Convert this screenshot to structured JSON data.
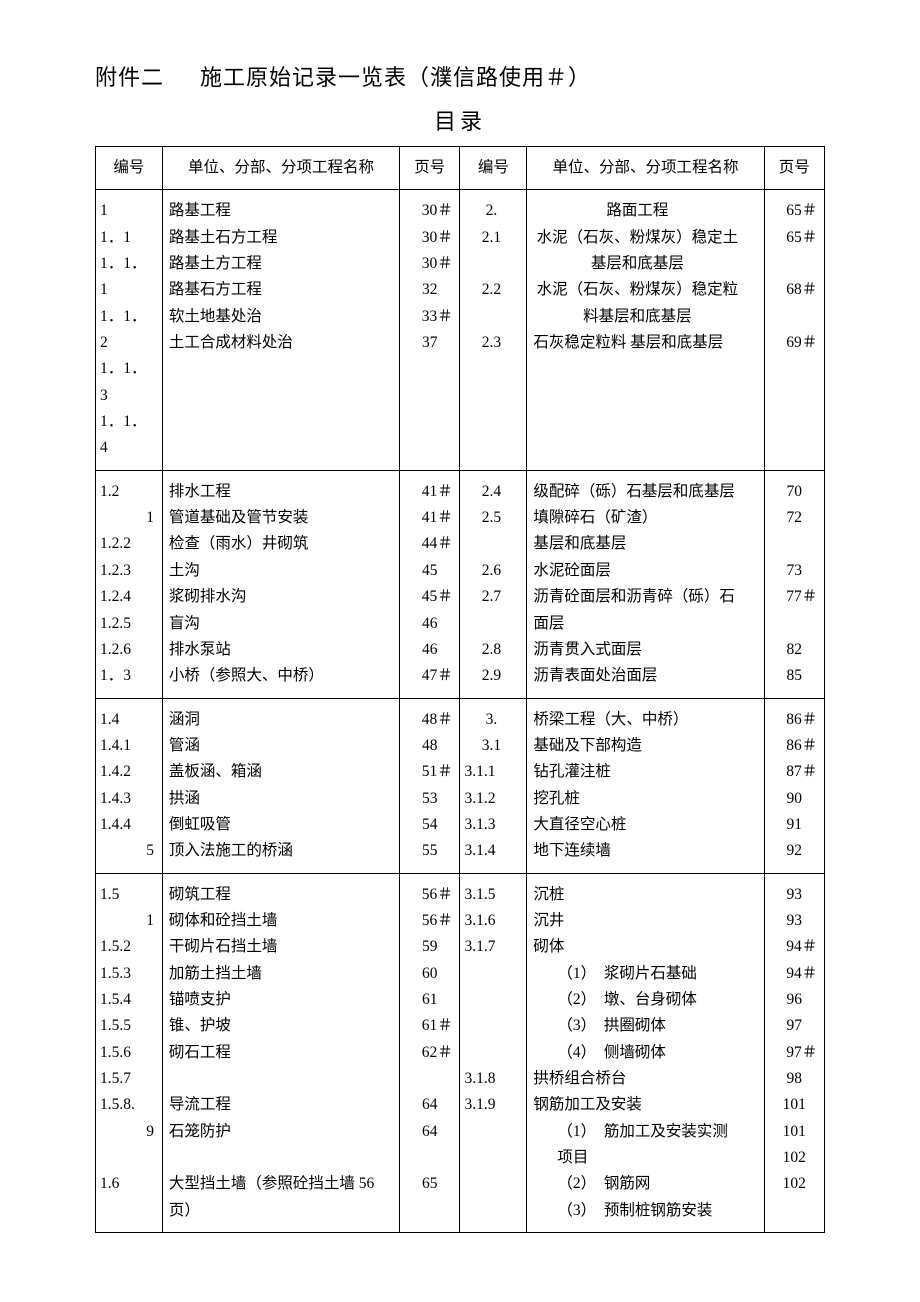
{
  "header": {
    "prefix": "附件二",
    "title": "施工原始记录一览表（濮信路使用＃）",
    "subtitle": "目录"
  },
  "columns": {
    "id": "编号",
    "name": "单位、分部、分项工程名称",
    "page": "页号"
  },
  "left": {
    "g1": {
      "r1": {
        "id": "1",
        "name": "路基工程",
        "page": "30＃"
      },
      "r2": {
        "id": "1．1",
        "name": "路基土石方工程",
        "page": "30＃"
      },
      "r3": {
        "id": "1．1．1",
        "name": "路基土方工程",
        "page": "30＃"
      },
      "r4": {
        "id": "1．1．2",
        "name": "路基石方工程",
        "page": "32"
      },
      "r5": {
        "id": "1．1．3",
        "name": "软土地基处治",
        "page": "33＃"
      },
      "r6": {
        "id": "1．1．4",
        "name": "土工合成材料处治",
        "page": "37"
      }
    },
    "g2": {
      "r1": {
        "id": "1.2",
        "name": "排水工程",
        "page": "41＃"
      },
      "r2": {
        "id": "1",
        "name": "管道基础及管节安装",
        "page": "41＃"
      },
      "r3": {
        "id": "1.2.2",
        "name": "检查（雨水）井砌筑",
        "page": "44＃"
      },
      "r4": {
        "id": "1.2.3",
        "name": "土沟",
        "page": "45"
      },
      "r5": {
        "id": "1.2.4",
        "name": "浆砌排水沟",
        "page": "45＃"
      },
      "r6": {
        "id": "1.2.5",
        "name": "盲沟",
        "page": "46"
      },
      "r7": {
        "id": "1.2.6",
        "name": "排水泵站",
        "page": "46"
      },
      "r8": {
        "id": "1．3",
        "name": "小桥（参照大、中桥）",
        "page": "47＃"
      }
    },
    "g3": {
      "r1": {
        "id": "1.4",
        "name": "涵洞",
        "page": "48＃"
      },
      "r2": {
        "id": "1.4.1",
        "name": "管涵",
        "page": "48"
      },
      "r3": {
        "id": "1.4.2",
        "name": "盖板涵、箱涵",
        "page": "51＃"
      },
      "r4": {
        "id": "1.4.3",
        "name": "拱涵",
        "page": "53"
      },
      "r5": {
        "id": "1.4.4",
        "name": "倒虹吸管",
        "page": "54"
      },
      "r6": {
        "id": "5",
        "name": "顶入法施工的桥涵",
        "page": "55"
      }
    },
    "g4": {
      "r1": {
        "id": "1.5",
        "name": "砌筑工程",
        "page": "56＃"
      },
      "r2": {
        "id": "1",
        "name": "砌体和砼挡土墙",
        "page": "56＃"
      },
      "r3": {
        "id": "1.5.2",
        "name": "干砌片石挡土墙",
        "page": "59"
      },
      "r4": {
        "id": "1.5.3",
        "name": "加筋土挡土墙",
        "page": "60"
      },
      "r5": {
        "id": "1.5.4",
        "name": "锚喷支护",
        "page": "61"
      },
      "r6": {
        "id": "1.5.5",
        "name": "锥、护坡",
        "page": "61＃"
      },
      "r7": {
        "id": "1.5.6",
        "name": "砌石工程",
        "page": "62＃"
      },
      "r8": {
        "id": "1.5.7",
        "name": "",
        "page": ""
      },
      "r9": {
        "id": "1.5.8.",
        "name": "导流工程",
        "page": "64"
      },
      "r10": {
        "id": "9",
        "name": "石笼防护",
        "page": "64"
      },
      "r11": {
        "id": "",
        "name": "",
        "page": ""
      },
      "r12": {
        "id": "1.6",
        "name": "大型挡土墙（参照砼挡土墙 56页）",
        "page": "65"
      }
    }
  },
  "right": {
    "g1": {
      "r1": {
        "id": "2.",
        "name": "路面工程",
        "page": "65＃"
      },
      "r2": {
        "id": "2.1",
        "name": "水泥（石灰、粉煤灰）稳定土",
        "page": "65＃"
      },
      "r3": {
        "id": "",
        "name": "基层和底基层",
        "page": ""
      },
      "r4": {
        "id": "2.2",
        "name": "水泥（石灰、粉煤灰）稳定粒",
        "page": "68＃"
      },
      "r5": {
        "id": "",
        "name": "料基层和底基层",
        "page": ""
      },
      "r6": {
        "id": "2.3",
        "name": "石灰稳定粒料  基层和底基层",
        "page": "69＃"
      }
    },
    "g2": {
      "r1": {
        "id": "2.4",
        "name": "级配碎（砾）石基层和底基层",
        "page": "70"
      },
      "r2": {
        "id": "2.5",
        "name": "填隙碎石（矿渣）",
        "page": "72"
      },
      "r3": {
        "id": "",
        "name": "基层和底基层",
        "page": ""
      },
      "r4": {
        "id": "2.6",
        "name": "水泥砼面层",
        "page": "73"
      },
      "r5": {
        "id": "2.7",
        "name": "沥青砼面层和沥青碎（砾）石",
        "page": "77＃"
      },
      "r6": {
        "id": "",
        "name": "面层",
        "page": ""
      },
      "r7": {
        "id": "2.8",
        "name": "沥青贯入式面层",
        "page": "82"
      },
      "r8": {
        "id": "2.9",
        "name": "沥青表面处治面层",
        "page": "85"
      }
    },
    "g3": {
      "r1": {
        "id": "3.",
        "name": "桥梁工程（大、中桥）",
        "page": "86＃"
      },
      "r2": {
        "id": "3.1",
        "name": "基础及下部构造",
        "page": "86＃"
      },
      "r3": {
        "id": "3.1.1",
        "name": "钻孔灌注桩",
        "page": "87＃"
      },
      "r4": {
        "id": "3.1.2",
        "name": "挖孔桩",
        "page": "90"
      },
      "r5": {
        "id": "3.1.3",
        "name": "大直径空心桩",
        "page": "91"
      },
      "r6": {
        "id": "3.1.4",
        "name": "地下连续墙",
        "page": "92"
      }
    },
    "g4": {
      "r1": {
        "id": "3.1.5",
        "name": "沉桩",
        "page": "93"
      },
      "r2": {
        "id": "3.1.6",
        "name": "沉井",
        "page": "93"
      },
      "r3": {
        "id": "3.1.7",
        "name": "砌体",
        "page": "94＃"
      },
      "r4": {
        "id": "",
        "name": "（1）　浆砌片石基础",
        "page": "94＃"
      },
      "r5": {
        "id": "",
        "name": "（2）　墩、台身砌体",
        "page": "96"
      },
      "r6": {
        "id": "",
        "name": "（3）　拱圈砌体",
        "page": "97"
      },
      "r7": {
        "id": "",
        "name": "（4）　侧墙砌体",
        "page": "97＃"
      },
      "r8": {
        "id": "3.1.8",
        "name": "拱桥组合桥台",
        "page": "98"
      },
      "r9": {
        "id": "3.1.9",
        "name": "钢筋加工及安装",
        "page": "101"
      },
      "r10": {
        "id": "",
        "name": "（1）　筋加工及安装实测项目",
        "page": "101"
      },
      "r11": {
        "id": "",
        "name": "（2）　钢筋网",
        "page": "102"
      },
      "r12": {
        "id": "",
        "name": "（3）　预制桩钢筋安装",
        "page": "102"
      }
    }
  }
}
